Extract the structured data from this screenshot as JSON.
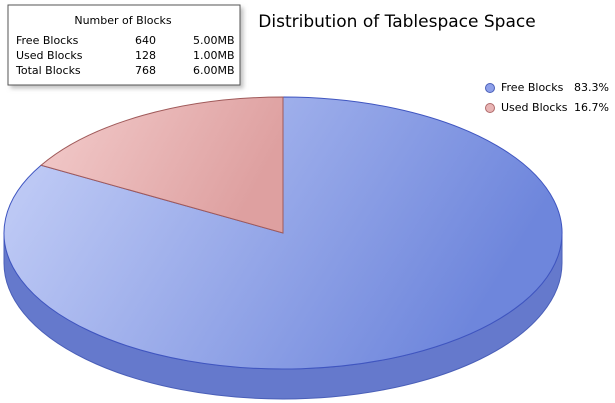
{
  "chart_data": {
    "type": "pie",
    "title": "Distribution of Tablespace Space",
    "categories": [
      "Free Blocks",
      "Used Blocks"
    ],
    "values": [
      83.3,
      16.7
    ],
    "value_labels": [
      "83.3%",
      "16.7%"
    ],
    "colors": [
      "#8ea0ea",
      "#e8b4b4"
    ],
    "legend": "top-right"
  },
  "table": {
    "title": "Number of Blocks",
    "rows": [
      [
        "Free Blocks",
        640,
        "5.00MB"
      ],
      [
        "Used Blocks",
        128,
        "1.00MB"
      ],
      [
        "Total Blocks",
        768,
        "6.00MB"
      ]
    ]
  }
}
